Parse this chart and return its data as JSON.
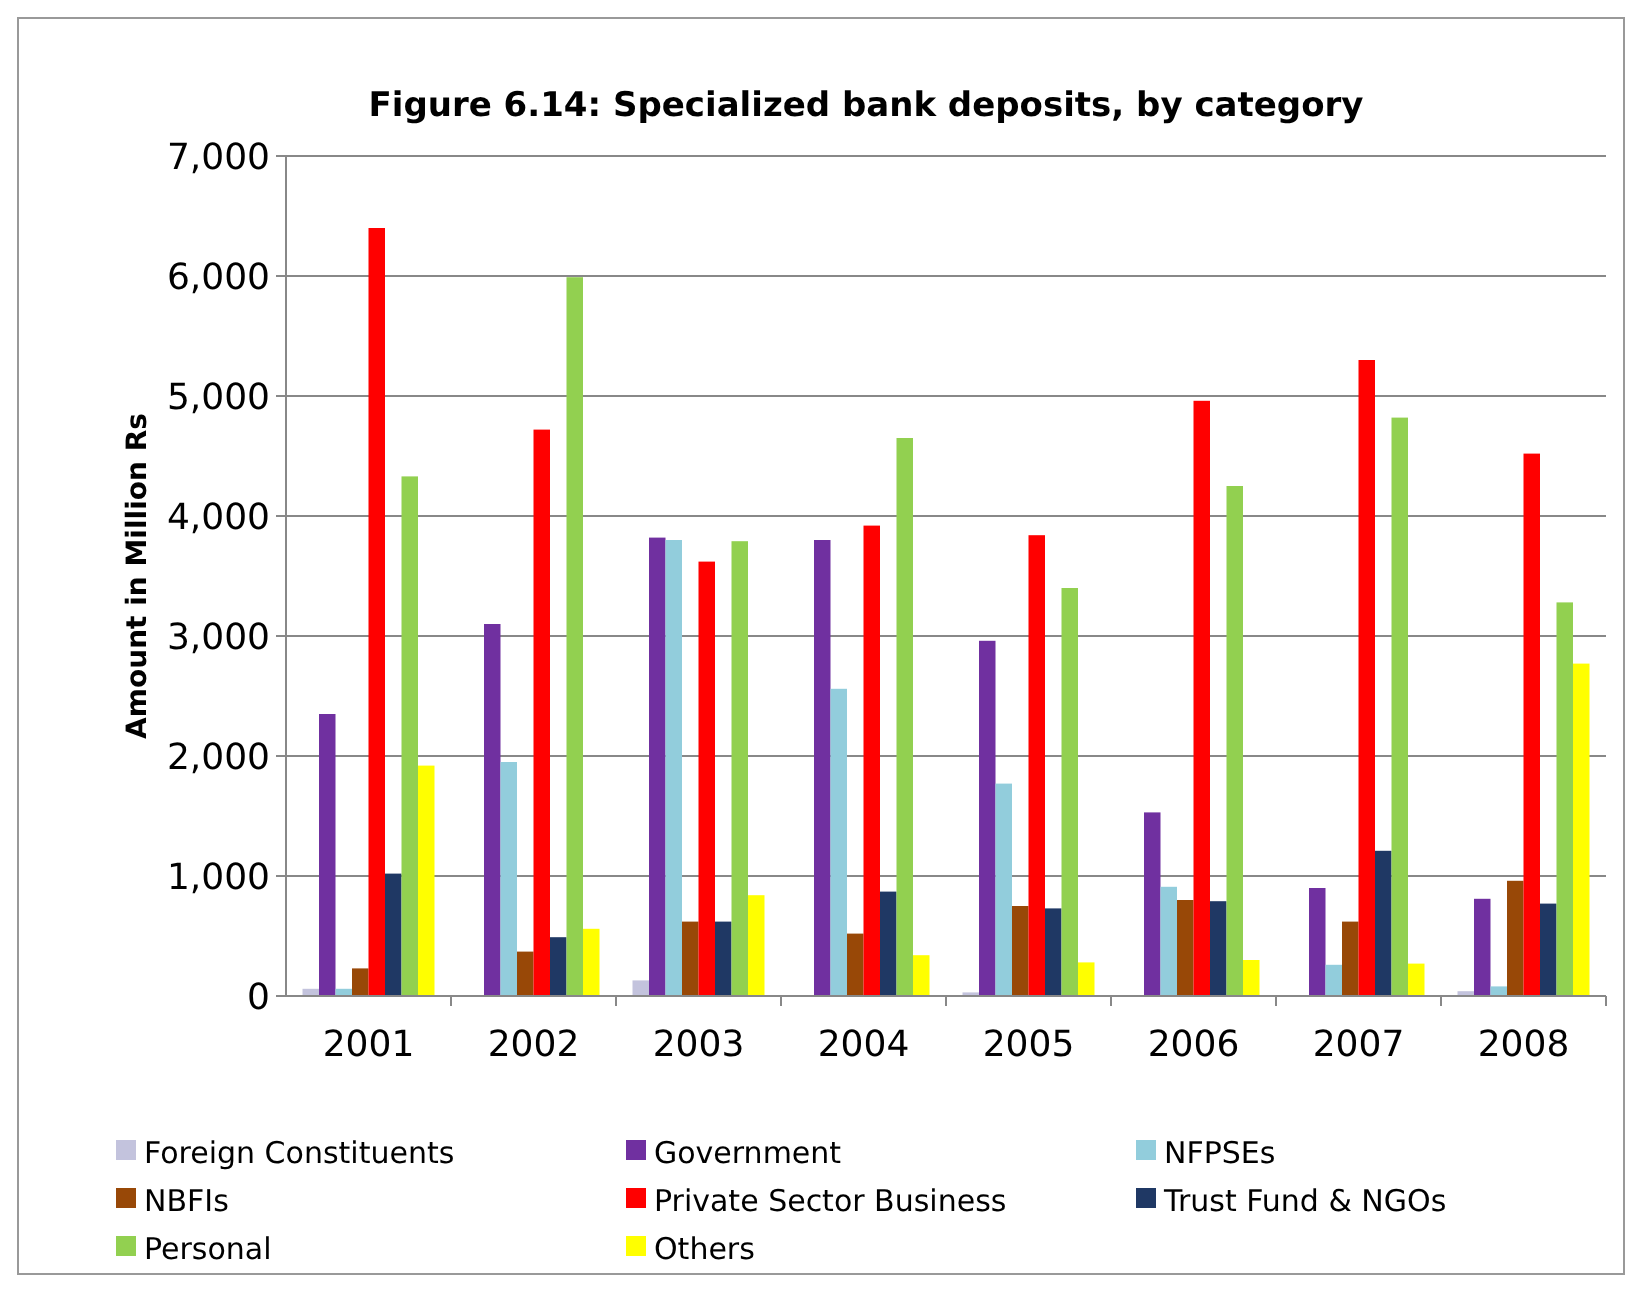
{
  "chart_data": {
    "type": "bar",
    "title": "Figure 6.14: Specialized bank deposits, by category",
    "ylabel": "Amount in Million Rs",
    "categories": [
      "2001",
      "2002",
      "2003",
      "2004",
      "2005",
      "2006",
      "2007",
      "2008"
    ],
    "series": [
      {
        "name": "Foreign Constituents",
        "color": "#c3c3dd",
        "values": [
          60,
          0,
          130,
          0,
          30,
          0,
          0,
          40
        ]
      },
      {
        "name": "Government",
        "color": "#7030a0",
        "values": [
          2350,
          3100,
          3820,
          3800,
          2960,
          1530,
          900,
          810
        ]
      },
      {
        "name": "NFPSEs",
        "color": "#92cddc",
        "values": [
          60,
          1950,
          3800,
          2560,
          1770,
          910,
          260,
          80
        ]
      },
      {
        "name": "NBFIs",
        "color": "#984807",
        "values": [
          230,
          370,
          620,
          520,
          750,
          800,
          620,
          960
        ]
      },
      {
        "name": "Private Sector Business",
        "color": "#ff0000",
        "values": [
          6400,
          4720,
          3620,
          3920,
          3840,
          4960,
          5300,
          4520
        ]
      },
      {
        "name": "Trust Fund & NGOs",
        "color": "#1f3864",
        "values": [
          1020,
          490,
          620,
          870,
          730,
          790,
          1210,
          770
        ]
      },
      {
        "name": "Personal",
        "color": "#92d050",
        "values": [
          4330,
          5990,
          3790,
          4650,
          3400,
          4250,
          4820,
          3280
        ]
      },
      {
        "name": "Others",
        "color": "#ffff00",
        "values": [
          1920,
          560,
          840,
          340,
          280,
          300,
          270,
          2770
        ]
      }
    ],
    "ylim": [
      0,
      7000
    ],
    "yticks": [
      {
        "value": 0,
        "label": "0"
      },
      {
        "value": 1000,
        "label": "1,000"
      },
      {
        "value": 2000,
        "label": "2,000"
      },
      {
        "value": 3000,
        "label": "3,000"
      },
      {
        "value": 4000,
        "label": "4,000"
      },
      {
        "value": 5000,
        "label": "5,000"
      },
      {
        "value": 6000,
        "label": "6,000"
      },
      {
        "value": 7000,
        "label": "7,000"
      }
    ],
    "grid": "y",
    "legend": "bottom"
  }
}
